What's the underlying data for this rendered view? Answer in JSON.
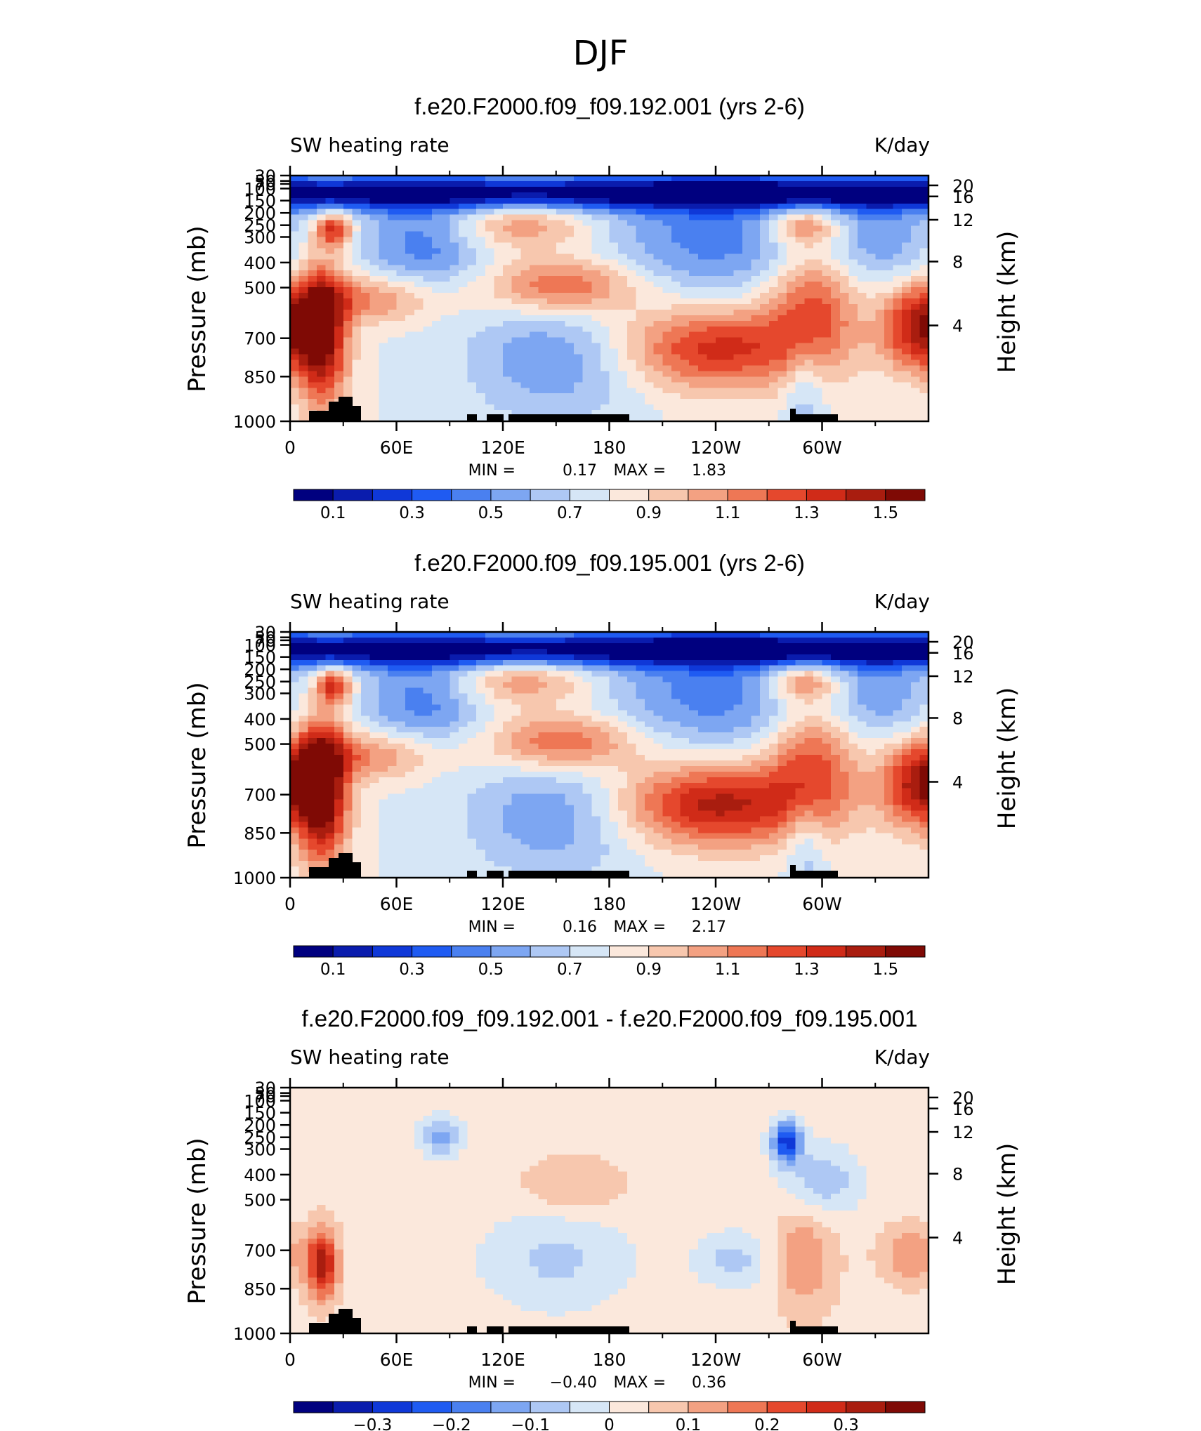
{
  "page_title": "DJF",
  "colors": {
    "positive_scale": [
      "#00007f",
      "#0a1cad",
      "#0f38d8",
      "#1f5bf2",
      "#4a80f0",
      "#7da6f2",
      "#aec8f4",
      "#d6e6f6",
      "#fbe8dc",
      "#f7c7ae",
      "#f3a182",
      "#ee7755",
      "#e5482d",
      "#d02b18",
      "#a91d0f",
      "#7f0a05"
    ],
    "diff_scale": [
      "#00007f",
      "#0a1cad",
      "#0f38d8",
      "#1f5bf2",
      "#4a80f0",
      "#7da6f2",
      "#aec8f4",
      "#d6e6f6",
      "#fbe8dc",
      "#f7c7ae",
      "#f3a182",
      "#ee7755",
      "#e5482d",
      "#d02b18",
      "#a91d0f",
      "#7f0a05"
    ],
    "topography": "#000000"
  },
  "chart_data": [
    {
      "type": "heatmap",
      "title": "f.e20.F2000.f09_f09.192.001 (yrs 2-6)",
      "left_label": "SW heating rate",
      "right_label": "K/day",
      "ylabel": "Pressure (mb)",
      "y2label": "Height (km)",
      "xticks": [
        "0",
        "60E",
        "120E",
        "180",
        "120W",
        "60W"
      ],
      "yticks": [
        "30",
        "50",
        "70",
        "100",
        "150",
        "200",
        "250",
        "300",
        "400",
        "500",
        "700",
        "850",
        "1000"
      ],
      "y2ticks": [
        "20",
        "16",
        "12",
        "8",
        "4"
      ],
      "stats": {
        "min_label": "MIN =",
        "min": "0.17",
        "max_label": "MAX =",
        "max": "1.83"
      },
      "colorbar_labels": [
        "0.1",
        "0.3",
        "0.5",
        "0.7",
        "0.9",
        "1.1",
        "1.3",
        "1.5"
      ]
    },
    {
      "type": "heatmap",
      "title": "f.e20.F2000.f09_f09.195.001 (yrs 2-6)",
      "left_label": "SW heating rate",
      "right_label": "K/day",
      "ylabel": "Pressure (mb)",
      "y2label": "Height (km)",
      "xticks": [
        "0",
        "60E",
        "120E",
        "180",
        "120W",
        "60W"
      ],
      "yticks": [
        "30",
        "50",
        "70",
        "100",
        "150",
        "200",
        "250",
        "300",
        "400",
        "500",
        "700",
        "850",
        "1000"
      ],
      "y2ticks": [
        "20",
        "16",
        "12",
        "8",
        "4"
      ],
      "stats": {
        "min_label": "MIN =",
        "min": "0.16",
        "max_label": "MAX =",
        "max": "2.17"
      },
      "colorbar_labels": [
        "0.1",
        "0.3",
        "0.5",
        "0.7",
        "0.9",
        "1.1",
        "1.3",
        "1.5"
      ]
    },
    {
      "type": "heatmap",
      "title": "f.e20.F2000.f09_f09.192.001 - f.e20.F2000.f09_f09.195.001",
      "left_label": "SW heating rate",
      "right_label": "K/day",
      "ylabel": "Pressure (mb)",
      "y2label": "Height (km)",
      "xticks": [
        "0",
        "60E",
        "120E",
        "180",
        "120W",
        "60W"
      ],
      "yticks": [
        "30",
        "50",
        "70",
        "100",
        "150",
        "200",
        "250",
        "300",
        "400",
        "500",
        "700",
        "850",
        "1000"
      ],
      "y2ticks": [
        "20",
        "16",
        "12",
        "8",
        "4"
      ],
      "stats": {
        "min_label": "MIN =",
        "min": "−0.40",
        "max_label": "MAX =",
        "max": "0.36"
      },
      "colorbar_labels": [
        "−0.3",
        "−0.2",
        "−0.1",
        "0",
        "0.1",
        "0.2",
        "0.3"
      ]
    }
  ]
}
